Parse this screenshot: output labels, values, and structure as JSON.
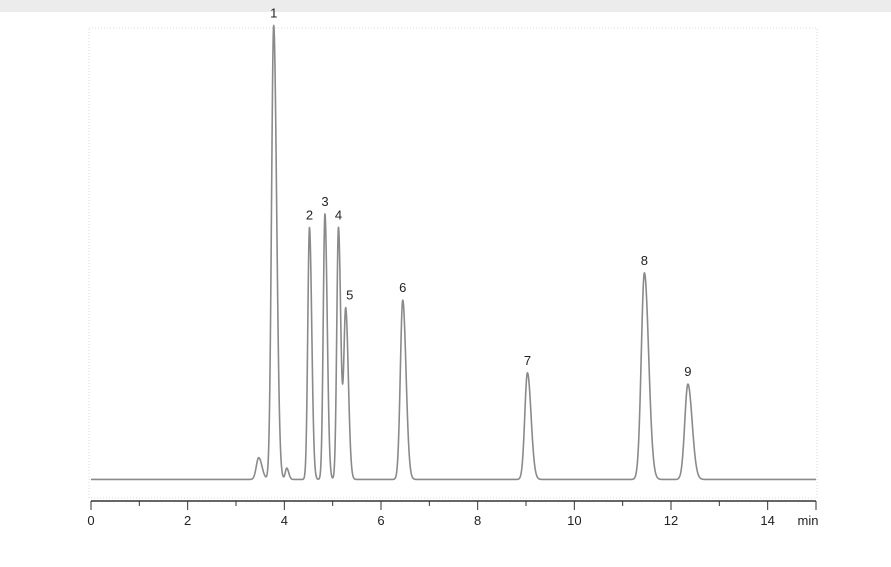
{
  "chart_data": {
    "type": "line",
    "title": "",
    "xlabel": "",
    "x_unit_label": "min",
    "ylabel": "",
    "xlim": [
      0,
      15
    ],
    "ylim": [
      0,
      1
    ],
    "x_ticks": [
      0,
      2,
      4,
      6,
      8,
      10,
      12,
      14
    ],
    "x_tick_labels": [
      "0",
      "2",
      "4",
      "6",
      "8",
      "10",
      "12",
      "14"
    ],
    "grid": false,
    "baseline": 0.01,
    "peaks": [
      {
        "label": "1",
        "rt": 3.78,
        "height": 1.0,
        "width": 0.045
      },
      {
        "label": "2",
        "rt": 4.52,
        "height": 0.555,
        "width": 0.035
      },
      {
        "label": "3",
        "rt": 4.84,
        "height": 0.585,
        "width": 0.035
      },
      {
        "label": "4",
        "rt": 5.12,
        "height": 0.555,
        "width": 0.035
      },
      {
        "label": "5",
        "rt": 5.27,
        "height": 0.375,
        "width": 0.04
      },
      {
        "label": "6",
        "rt": 6.45,
        "height": 0.395,
        "width": 0.05
      },
      {
        "label": "7",
        "rt": 9.03,
        "height": 0.235,
        "width": 0.055
      },
      {
        "label": "8",
        "rt": 11.45,
        "height": 0.455,
        "width": 0.065
      },
      {
        "label": "9",
        "rt": 12.35,
        "height": 0.21,
        "width": 0.065
      }
    ],
    "minor_peaks": [
      {
        "rt": 3.47,
        "height": 0.048,
        "width": 0.05
      },
      {
        "rt": 4.05,
        "height": 0.025,
        "width": 0.03
      }
    ],
    "series_color": "#8a8a8a",
    "axis_color": "#333333"
  }
}
